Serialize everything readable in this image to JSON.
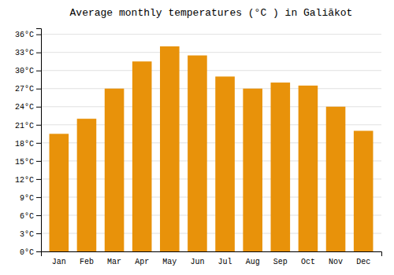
{
  "chart_data": {
    "type": "bar",
    "title": "Average monthly temperatures (°C ) in Galiākot",
    "categories": [
      "Jan",
      "Feb",
      "Mar",
      "Apr",
      "May",
      "Jun",
      "Jul",
      "Aug",
      "Sep",
      "Oct",
      "Nov",
      "Dec"
    ],
    "values": [
      19.5,
      22.0,
      27.0,
      31.5,
      34.0,
      32.5,
      29.0,
      27.0,
      28.0,
      27.5,
      24.0,
      20.0
    ],
    "color": "#E8920A",
    "ylim": [
      0,
      37
    ],
    "yticks": [
      {
        "value": 0,
        "label": "0°C"
      },
      {
        "value": 3,
        "label": "3°C"
      },
      {
        "value": 6,
        "label": "6°C"
      },
      {
        "value": 9,
        "label": "9°C"
      },
      {
        "value": 12,
        "label": "12°C"
      },
      {
        "value": 15,
        "label": "15°C"
      },
      {
        "value": 18,
        "label": "18°C"
      },
      {
        "value": 21,
        "label": "21°C"
      },
      {
        "value": 24,
        "label": "24°C"
      },
      {
        "value": 27,
        "label": "27°C"
      },
      {
        "value": 30,
        "label": "30°C"
      },
      {
        "value": 33,
        "label": "33°C"
      },
      {
        "value": 36,
        "label": "36°C"
      }
    ],
    "grid": true
  }
}
